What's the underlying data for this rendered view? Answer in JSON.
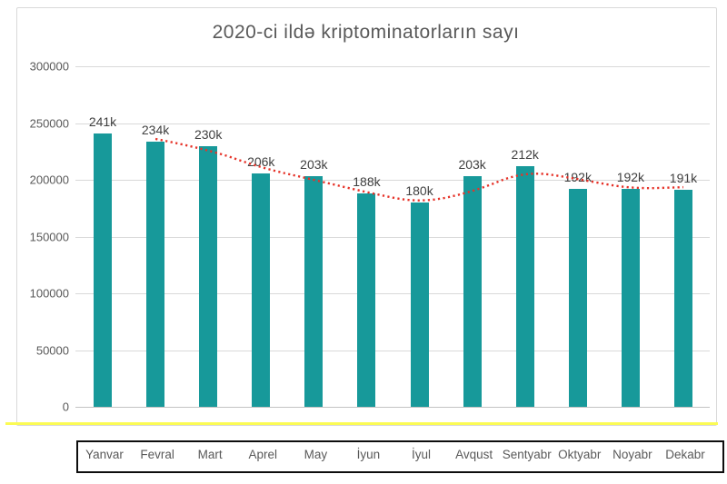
{
  "title": "2020-ci ildə kriptominatorların sayı",
  "chart_data": {
    "type": "bar",
    "title": "2020-ci ildə kriptominatorların sayı",
    "categories": [
      "Yanvar",
      "Fevral",
      "Mart",
      "Aprel",
      "May",
      "İyun",
      "İyul",
      "Avqust",
      "Sentyabr",
      "Oktyabr",
      "Noyabr",
      "Dekabr"
    ],
    "values": [
      241000,
      234000,
      230000,
      206000,
      203000,
      188000,
      180000,
      203000,
      212000,
      192000,
      192000,
      191000
    ],
    "bar_labels": [
      "241k",
      "234k",
      "230k",
      "206k",
      "203k",
      "188k",
      "180k",
      "203k",
      "212k",
      "192k",
      "192k",
      "191k"
    ],
    "y_ticks": [
      "0",
      "50000",
      "100000",
      "150000",
      "200000",
      "250000",
      "300000"
    ],
    "ylim": [
      0,
      300000
    ],
    "grid": true,
    "legend": "none",
    "bar_color": "#17999a",
    "gridline_color": "#d9d9d9",
    "text_color": "#595959",
    "data_label_color": "#404040",
    "accent_underline_color": "#fbfb54",
    "trendline": {
      "style": "dotted",
      "color": "#e63329",
      "start_index": 1,
      "values": [
        236000,
        227000,
        210500,
        200000,
        189000,
        179500,
        189000,
        208000,
        200800,
        192000,
        193500
      ]
    }
  }
}
